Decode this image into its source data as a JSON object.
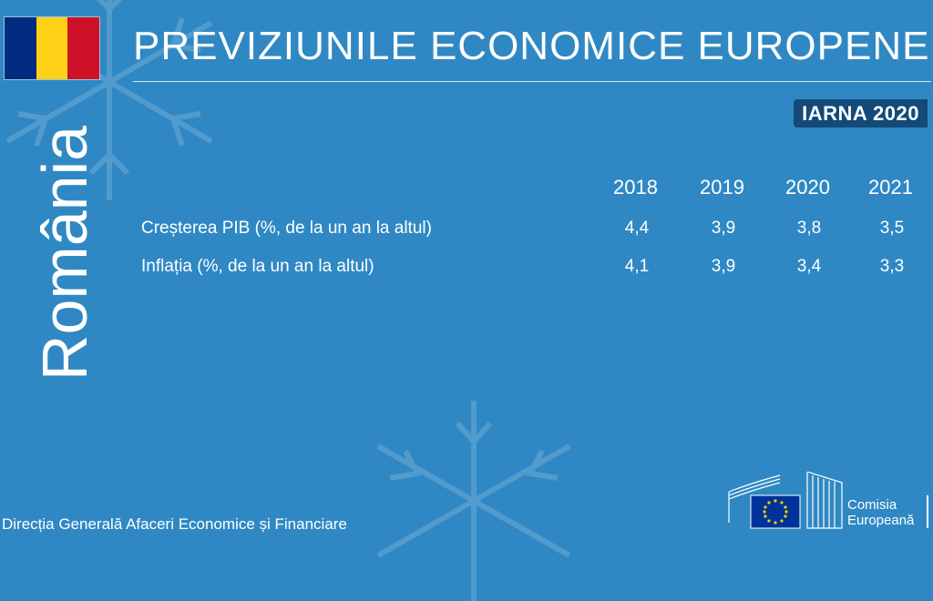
{
  "header": {
    "title": "PREVIZIUNILE ECONOMICE EUROPENE",
    "season_badge": "IARNA 2020",
    "country": "România",
    "flag_colors": [
      "#002b7f",
      "#fcd116",
      "#ce1126"
    ]
  },
  "table": {
    "years": [
      "2018",
      "2019",
      "2020",
      "2021"
    ],
    "rows": [
      {
        "label": "Creșterea PIB (%, de la un an la altul)",
        "values": [
          "4,4",
          "3,9",
          "3,8",
          "3,5"
        ]
      },
      {
        "label": "Inflația (%, de la un an la altul)",
        "values": [
          "4,1",
          "3,9",
          "3,4",
          "3,3"
        ]
      }
    ]
  },
  "footer": {
    "department": "Direcția Generală Afaceri Economice și Financiare",
    "logo_line1": "Comisia",
    "logo_line2": "Europeană",
    "logo_icon": "european-commission-logo"
  },
  "colors": {
    "background": "#2f88c4",
    "badge": "#134a7a",
    "eu_blue": "#003399",
    "eu_yellow": "#ffcc00"
  }
}
